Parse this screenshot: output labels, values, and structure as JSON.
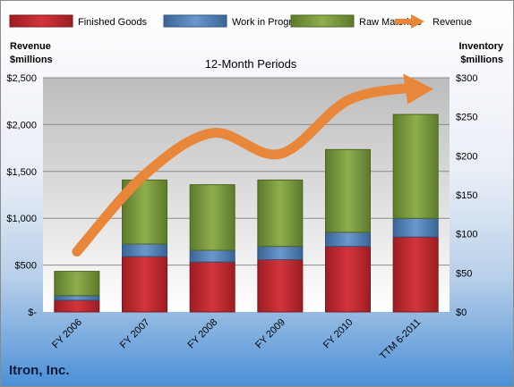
{
  "chart_data": {
    "type": "bar",
    "stacked": true,
    "title": "12-Month Periods",
    "company": "Itron, Inc.",
    "categories": [
      "FY 2006",
      "FY 2007",
      "FY 2008",
      "FY 2009",
      "FY 2010",
      "TTM 6-2011"
    ],
    "left_axis": {
      "title_line1": "Revenue",
      "title_line2": "$millions",
      "range": [
        0,
        2500
      ],
      "ticks": [
        0,
        500,
        1000,
        1500,
        2000,
        2500
      ],
      "tick_labels": [
        "$-",
        "$500",
        "$1,000",
        "$1,500",
        "$2,000",
        "$2,500"
      ]
    },
    "right_axis": {
      "title_line1": "Inventory",
      "title_line2": "$millions",
      "range": [
        0,
        300
      ],
      "ticks": [
        0,
        50,
        100,
        150,
        200,
        250,
        300
      ],
      "tick_labels": [
        "$0",
        "$50",
        "$100",
        "$150",
        "$200",
        "$250",
        "$300"
      ]
    },
    "series": [
      {
        "name": "Finished Goods",
        "axis": "right",
        "kind": "bar",
        "color": "#c0272d",
        "values": [
          15,
          71,
          64,
          67,
          84,
          96
        ]
      },
      {
        "name": "Work in Progress",
        "axis": "right",
        "kind": "bar",
        "color": "#4f81bd",
        "values": [
          6,
          16,
          15,
          17,
          18,
          24
        ]
      },
      {
        "name": "Raw Materials",
        "axis": "right",
        "kind": "bar",
        "color": "#77933c",
        "values": [
          31,
          82,
          84,
          85,
          106,
          133
        ]
      },
      {
        "name": "Revenue",
        "axis": "left",
        "kind": "line",
        "color": "#e8873a",
        "values": [
          644,
          1464,
          1910,
          1687,
          2259,
          2400
        ]
      }
    ],
    "legend_position": "top",
    "grid": true
  }
}
